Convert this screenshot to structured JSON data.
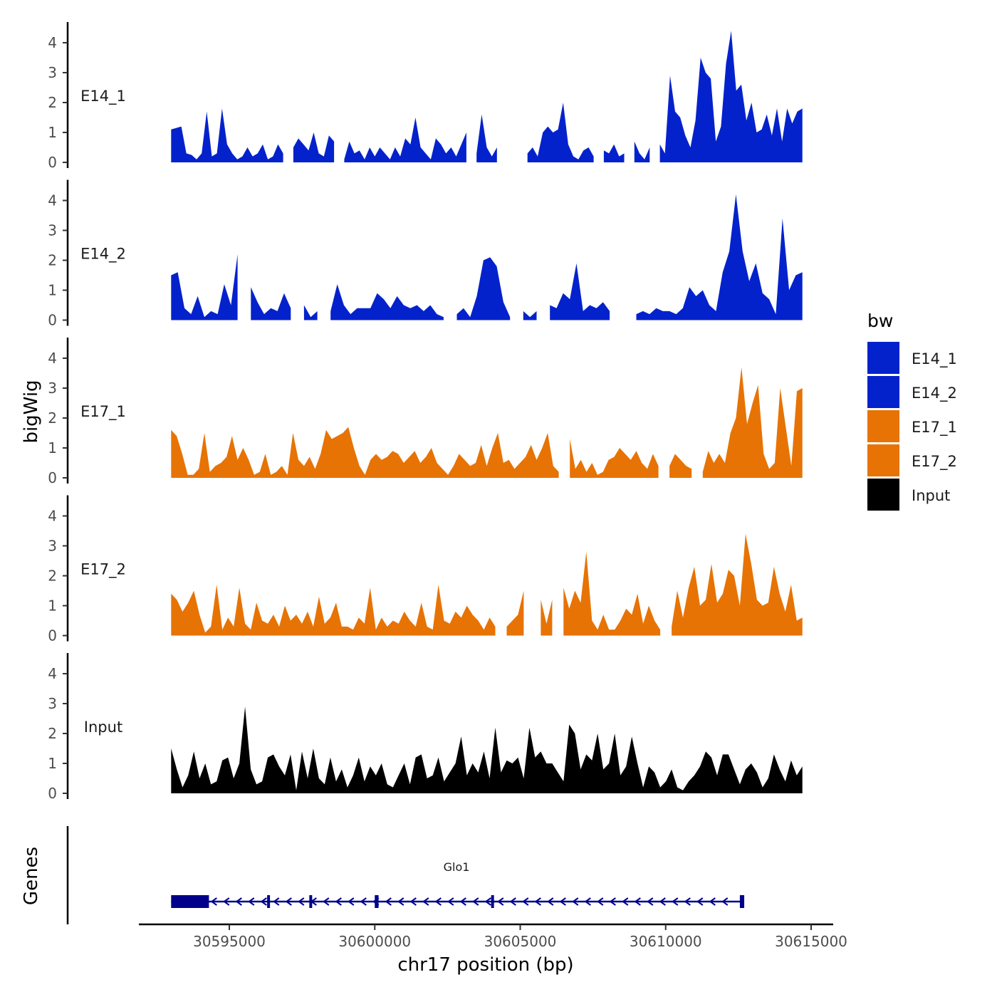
{
  "chart_data": {
    "type": "area",
    "title": "",
    "ylabel": "bigWig",
    "xlabel": "chr17 position (bp)",
    "xlim": [
      30592100,
      30616000
    ],
    "data_range": [
      30593000,
      30614700
    ],
    "ylim": [
      0,
      4.6
    ],
    "yticks": [
      0,
      1,
      2,
      3,
      4
    ],
    "xticks": [
      30595000,
      30600000,
      30605000,
      30610000,
      30615000
    ],
    "xtick_labels": [
      "30595000",
      "30600000",
      "30605000",
      "30610000",
      "30615000"
    ],
    "grid": false,
    "legend": {
      "title": "bw",
      "position": "right",
      "entries": [
        {
          "label": "E14_1",
          "color": "#0322cc"
        },
        {
          "label": "E14_2",
          "color": "#0322cc"
        },
        {
          "label": "E17_1",
          "color": "#e77304"
        },
        {
          "label": "E17_2",
          "color": "#e77304"
        },
        {
          "label": "Input",
          "color": "#000000"
        }
      ]
    },
    "series": [
      {
        "name": "E14_1",
        "color": "#0322cc",
        "values": [
          1.1,
          1.15,
          1.2,
          0.3,
          0.25,
          0.1,
          0.3,
          1.7,
          0.2,
          0.3,
          1.8,
          0.6,
          0.3,
          0.1,
          0.2,
          0.5,
          0.2,
          0.3,
          0.6,
          0.1,
          0.2,
          0.6,
          0.3,
          null,
          0.5,
          0.8,
          0.6,
          0.4,
          1.0,
          0.3,
          0.2,
          0.9,
          0.7,
          null,
          0.1,
          0.7,
          0.3,
          0.4,
          0.1,
          0.5,
          0.2,
          0.5,
          0.3,
          0.1,
          0.5,
          0.2,
          0.8,
          0.6,
          1.5,
          0.5,
          0.3,
          0.1,
          0.8,
          0.6,
          0.3,
          0.5,
          0.2,
          0.6,
          1.0,
          null,
          0.3,
          1.6,
          0.5,
          0.2,
          0.5,
          null,
          null,
          null,
          null,
          null,
          0.3,
          0.5,
          0.2,
          1.0,
          1.2,
          1.0,
          1.1,
          2.0,
          0.6,
          0.2,
          0.1,
          0.4,
          0.5,
          0.2,
          null,
          0.4,
          0.3,
          0.6,
          0.2,
          0.3,
          null,
          0.7,
          0.3,
          0.1,
          0.5,
          null,
          0.6,
          0.3,
          2.9,
          1.7,
          1.5,
          0.9,
          0.5,
          1.4,
          3.5,
          3.0,
          2.8,
          0.7,
          1.2,
          3.3,
          4.4,
          2.4,
          2.6,
          1.4,
          2.0,
          1.0,
          1.1,
          1.6,
          0.9,
          1.8,
          0.7,
          1.8,
          1.3,
          1.7,
          1.8
        ]
      },
      {
        "name": "E14_2",
        "color": "#0322cc",
        "values": [
          1.5,
          1.6,
          0.4,
          0.2,
          0.8,
          0.1,
          0.3,
          0.2,
          1.2,
          0.5,
          2.2,
          null,
          1.1,
          0.6,
          0.2,
          0.4,
          0.3,
          0.9,
          0.4,
          null,
          0.5,
          0.1,
          0.3,
          null,
          0.3,
          1.2,
          0.5,
          0.2,
          0.4,
          0.4,
          0.4,
          0.9,
          0.7,
          0.4,
          0.8,
          0.5,
          0.4,
          0.5,
          0.3,
          0.5,
          0.2,
          0.1,
          null,
          0.2,
          0.4,
          0.1,
          0.8,
          2.0,
          2.1,
          1.8,
          0.6,
          0.1,
          null,
          0.3,
          0.1,
          0.3,
          null,
          0.5,
          0.4,
          0.9,
          0.7,
          1.9,
          0.3,
          0.5,
          0.4,
          0.6,
          0.3,
          null,
          0.2,
          null,
          0.2,
          0.3,
          0.2,
          0.4,
          0.3,
          0.3,
          0.2,
          0.4,
          1.1,
          0.8,
          1.0,
          0.5,
          0.3,
          1.6,
          2.3,
          4.2,
          2.3,
          1.3,
          1.9,
          0.9,
          0.7,
          0.2,
          3.4,
          1.0,
          1.5,
          1.6
        ]
      },
      {
        "name": "E17_1",
        "color": "#e77304",
        "values": [
          1.6,
          1.4,
          0.8,
          0.1,
          0.1,
          0.3,
          1.5,
          0.2,
          0.4,
          0.5,
          0.7,
          1.4,
          0.6,
          1.0,
          0.6,
          0.1,
          0.2,
          0.8,
          0.1,
          0.2,
          0.4,
          0.1,
          1.5,
          0.6,
          0.4,
          0.7,
          0.3,
          0.8,
          1.6,
          1.3,
          1.4,
          1.5,
          1.7,
          1.0,
          0.4,
          0.1,
          0.6,
          0.8,
          0.6,
          0.7,
          0.9,
          0.8,
          0.5,
          0.7,
          0.9,
          0.5,
          0.7,
          1.0,
          0.5,
          0.3,
          0.1,
          0.4,
          0.8,
          0.6,
          0.4,
          0.5,
          1.1,
          0.4,
          1.0,
          1.5,
          0.5,
          0.6,
          0.3,
          0.5,
          0.7,
          1.1,
          0.6,
          1.0,
          1.5,
          0.4,
          0.2,
          null,
          1.3,
          0.3,
          0.6,
          0.2,
          0.5,
          0.1,
          0.2,
          0.6,
          0.7,
          1.0,
          0.8,
          0.6,
          0.9,
          0.5,
          0.3,
          0.8,
          0.4,
          null,
          0.4,
          0.8,
          0.6,
          0.4,
          0.3,
          null,
          0.2,
          0.9,
          0.5,
          0.8,
          0.5,
          1.5,
          2.0,
          3.7,
          1.8,
          2.5,
          3.1,
          0.8,
          0.3,
          0.5,
          3.0,
          1.7,
          0.4,
          2.9,
          3.0
        ]
      },
      {
        "name": "E17_2",
        "color": "#e77304",
        "values": [
          1.4,
          1.2,
          0.8,
          1.1,
          1.5,
          0.7,
          0.1,
          0.3,
          1.7,
          0.2,
          0.6,
          0.3,
          1.6,
          0.4,
          0.2,
          1.1,
          0.5,
          0.4,
          0.7,
          0.3,
          1.0,
          0.5,
          0.7,
          0.4,
          0.8,
          0.3,
          1.3,
          0.4,
          0.6,
          1.1,
          0.3,
          0.3,
          0.2,
          0.6,
          0.4,
          1.6,
          0.2,
          0.6,
          0.3,
          0.5,
          0.4,
          0.8,
          0.5,
          0.3,
          1.1,
          0.3,
          0.2,
          1.7,
          0.5,
          0.4,
          0.8,
          0.6,
          1.0,
          0.7,
          0.5,
          0.2,
          0.6,
          0.3,
          null,
          0.3,
          0.5,
          0.7,
          1.5,
          null,
          null,
          1.2,
          0.4,
          1.2,
          null,
          1.6,
          0.9,
          1.5,
          1.1,
          2.8,
          0.5,
          0.2,
          0.7,
          0.2,
          0.2,
          0.5,
          0.9,
          0.7,
          1.4,
          0.4,
          1.0,
          0.5,
          0.2,
          null,
          0.3,
          1.5,
          0.6,
          1.6,
          2.3,
          1.0,
          1.2,
          2.4,
          1.1,
          1.4,
          2.2,
          2.0,
          1.0,
          3.4,
          2.4,
          1.2,
          1.0,
          1.1,
          2.3,
          1.4,
          0.8,
          1.7,
          0.5,
          0.6
        ]
      },
      {
        "name": "Input",
        "color": "#000000",
        "values": [
          1.5,
          0.8,
          0.2,
          0.6,
          1.4,
          0.5,
          1.0,
          0.3,
          0.4,
          1.1,
          1.2,
          0.5,
          1.0,
          2.9,
          0.8,
          0.3,
          0.4,
          1.2,
          1.3,
          0.9,
          0.6,
          1.3,
          0.1,
          1.4,
          0.5,
          1.5,
          0.5,
          0.3,
          1.2,
          0.4,
          0.8,
          0.2,
          0.6,
          1.2,
          0.4,
          0.9,
          0.6,
          1.0,
          0.3,
          0.2,
          0.6,
          1.0,
          0.3,
          1.2,
          1.3,
          0.5,
          0.6,
          1.2,
          0.4,
          0.7,
          1.0,
          1.9,
          0.6,
          1.0,
          0.7,
          1.4,
          0.5,
          2.2,
          0.7,
          1.1,
          1.0,
          1.2,
          0.5,
          2.2,
          1.2,
          1.4,
          1.0,
          1.0,
          0.7,
          0.4,
          2.3,
          2.0,
          0.8,
          1.3,
          1.1,
          2.0,
          0.8,
          1.0,
          2.0,
          0.6,
          0.9,
          1.9,
          1.0,
          0.2,
          0.9,
          0.7,
          0.2,
          0.4,
          0.8,
          0.2,
          0.1,
          0.4,
          0.6,
          0.9,
          1.4,
          1.2,
          0.6,
          1.3,
          1.3,
          0.8,
          0.3,
          0.8,
          1.0,
          0.7,
          0.2,
          0.5,
          1.3,
          0.8,
          0.4,
          1.1,
          0.6,
          0.9
        ]
      }
    ]
  },
  "genes_panel": {
    "label": "Genes",
    "gene": {
      "name": "Glo1",
      "start": 30593000,
      "end": 30612700,
      "strand": "-",
      "exons": [
        [
          30593000,
          30594300
        ],
        [
          30596300,
          30596380
        ],
        [
          30597750,
          30597820
        ],
        [
          30600000,
          30600130
        ],
        [
          30604000,
          30604080
        ],
        [
          30612550,
          30612700
        ]
      ]
    },
    "color": "#00008b"
  }
}
